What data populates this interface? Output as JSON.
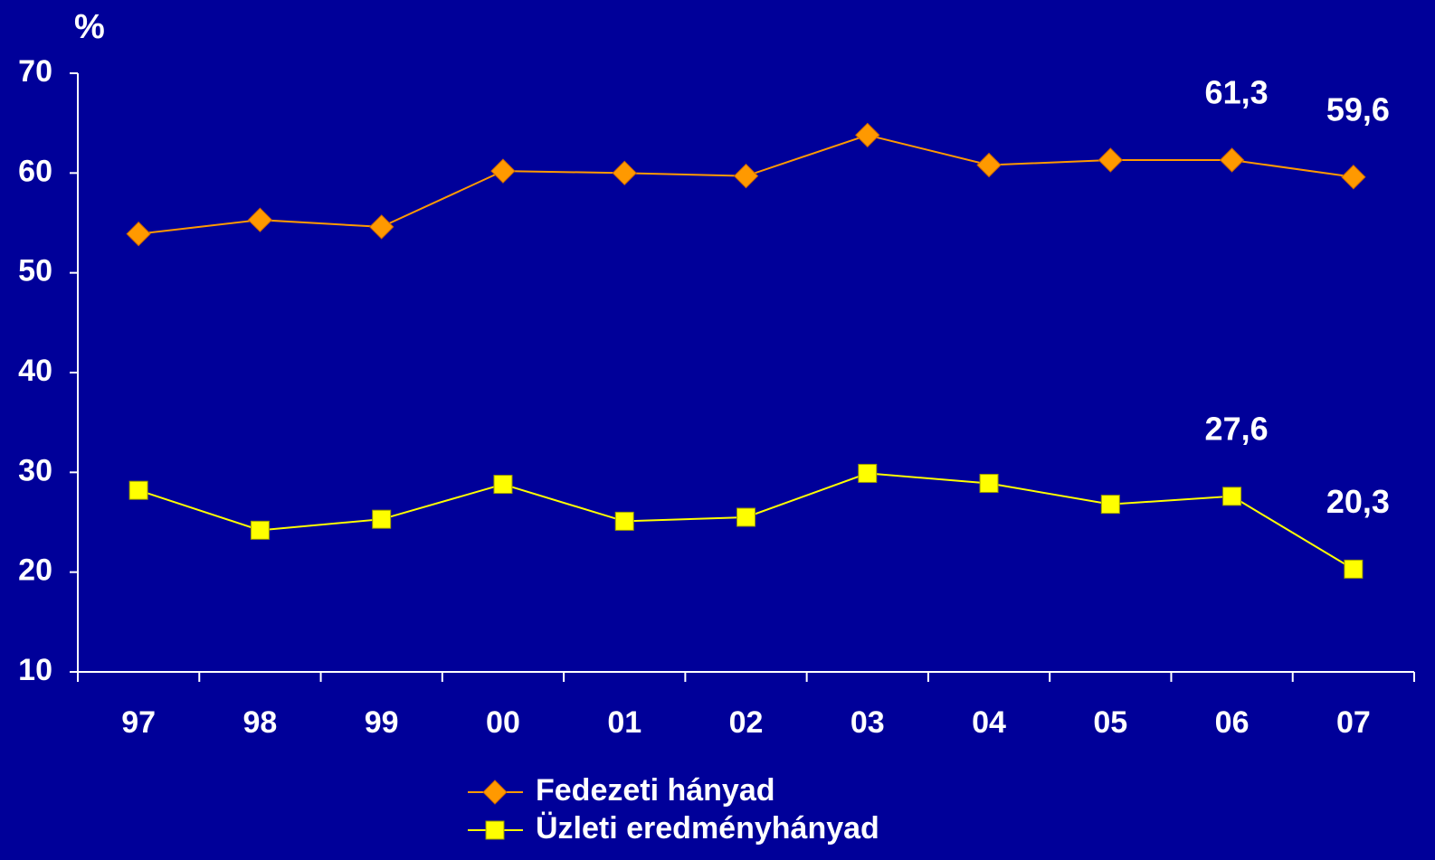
{
  "chart_data": {
    "type": "line",
    "y_label": "%",
    "categories": [
      "97",
      "98",
      "99",
      "00",
      "01",
      "02",
      "03",
      "04",
      "05",
      "06",
      "07"
    ],
    "series": [
      {
        "name": "Fedezeti hányad",
        "color": "#ff9900",
        "marker": "diamond",
        "values": [
          53.9,
          55.3,
          54.6,
          60.2,
          60.0,
          59.7,
          63.8,
          60.8,
          61.3,
          61.3,
          59.6
        ],
        "value_labels": [
          null,
          null,
          null,
          null,
          null,
          null,
          null,
          null,
          null,
          "61,3",
          "59,6"
        ]
      },
      {
        "name": "Üzleti eredményhányad",
        "color": "#ffff00",
        "marker": "square",
        "values": [
          28.2,
          24.2,
          25.3,
          28.8,
          25.1,
          25.5,
          29.9,
          28.9,
          26.8,
          27.6,
          20.3
        ],
        "value_labels": [
          null,
          null,
          null,
          null,
          null,
          null,
          null,
          null,
          null,
          "27,6",
          "20,3"
        ]
      }
    ],
    "ylim": [
      10,
      70
    ],
    "yticks": [
      10,
      20,
      30,
      40,
      50,
      60,
      70
    ],
    "background": "#000099",
    "axis_color": "#ffffff"
  }
}
